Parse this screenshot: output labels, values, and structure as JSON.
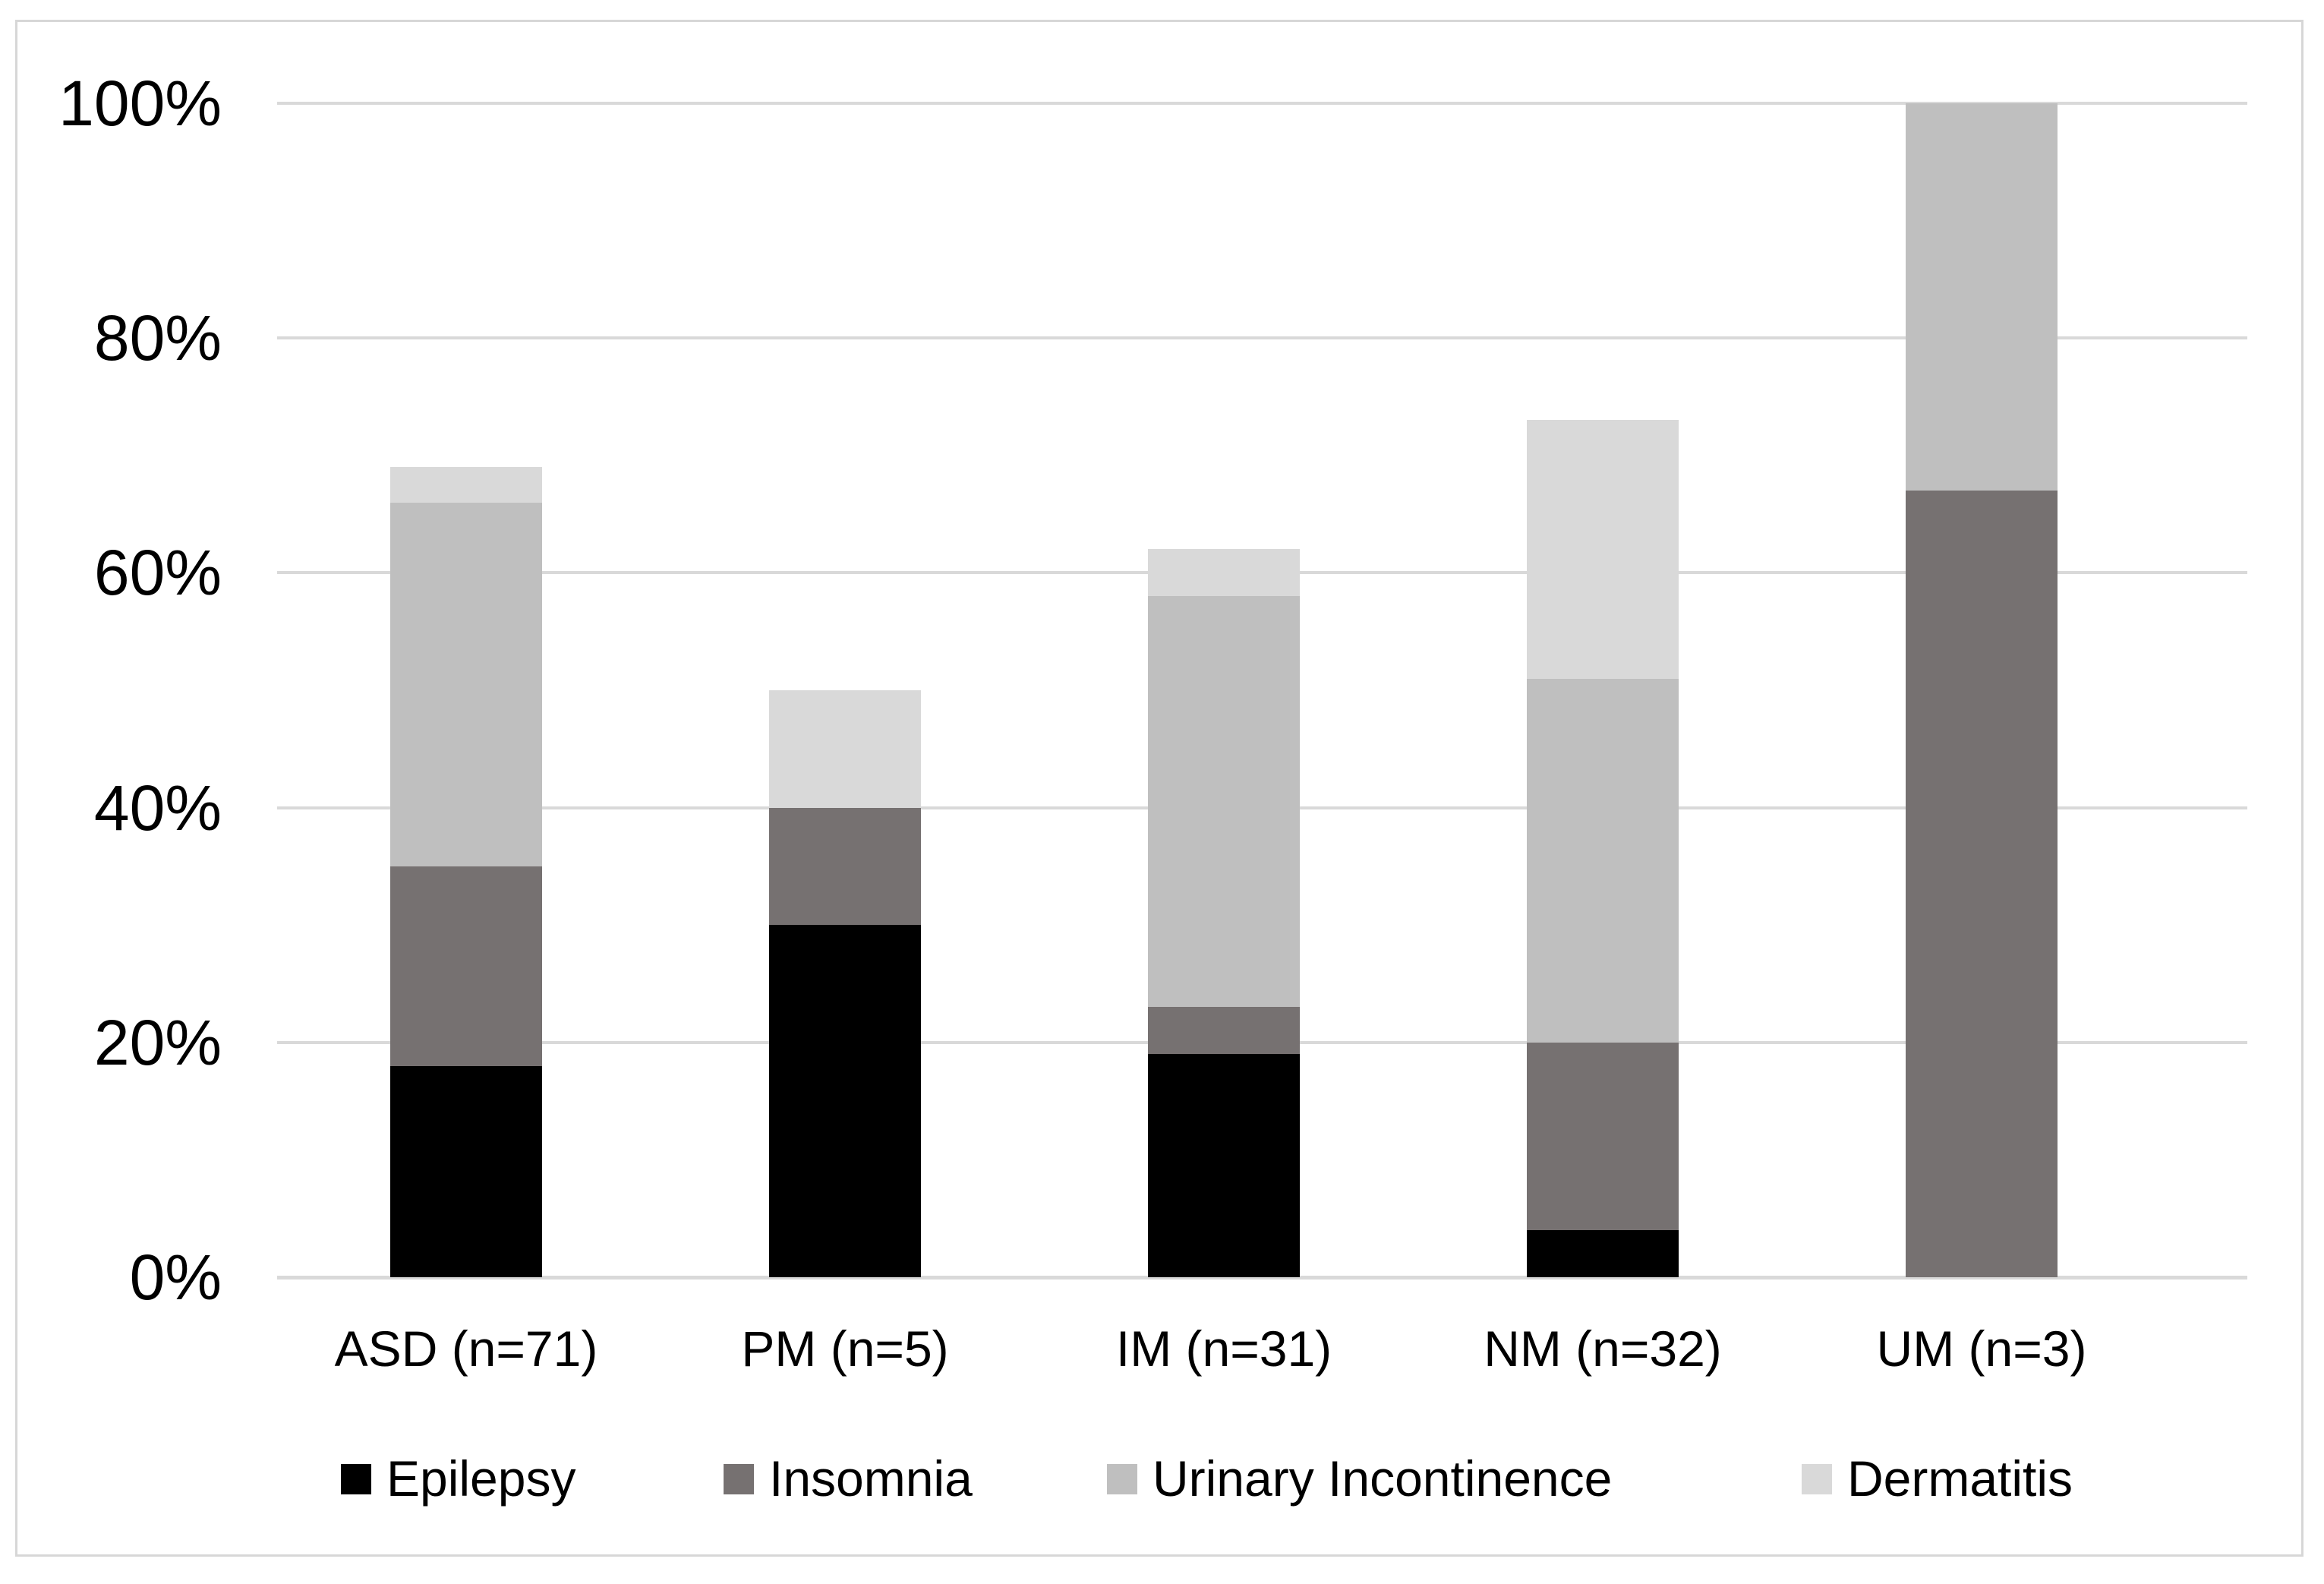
{
  "chart_data": {
    "type": "bar",
    "variant": "stacked-vertical-percentage",
    "title": "",
    "xlabel": "",
    "ylabel": "",
    "categories": [
      "ASD (n=71)",
      "PM (n=5)",
      "IM (n=31)",
      "NM (n=32)",
      "UM (n=3)"
    ],
    "series": [
      {
        "name": "Epilepsy",
        "color": "#000000",
        "values": [
          18,
          30,
          19,
          4,
          0
        ]
      },
      {
        "name": "Insomnia",
        "color": "#767171",
        "values": [
          17,
          10,
          4,
          16,
          67
        ]
      },
      {
        "name": "Urinary Incontinence",
        "color": "#bfbfbf",
        "values": [
          31,
          0,
          35,
          31,
          33
        ]
      },
      {
        "name": "Dermatitis",
        "color": "#d9d9d9",
        "values": [
          3,
          10,
          4,
          22,
          0
        ]
      }
    ],
    "stack_totals": [
      69,
      50,
      62,
      73,
      100
    ],
    "y_axis": {
      "min": 0,
      "max": 100,
      "tick_step": 20,
      "tick_values": [
        0,
        20,
        40,
        60,
        80,
        100
      ],
      "tick_labels": [
        "0%",
        "20%",
        "40%",
        "60%",
        "80%",
        "100%"
      ],
      "grid": true,
      "gridline_color": "#d9d9d9"
    },
    "legend": {
      "position": "bottom",
      "entries": [
        "Epilepsy",
        "Insomnia",
        "Urinary Incontinence",
        "Dermatitis"
      ]
    },
    "frame_border_color": "#d7d7d7",
    "background_color": "#ffffff",
    "text_color": "#000000"
  }
}
